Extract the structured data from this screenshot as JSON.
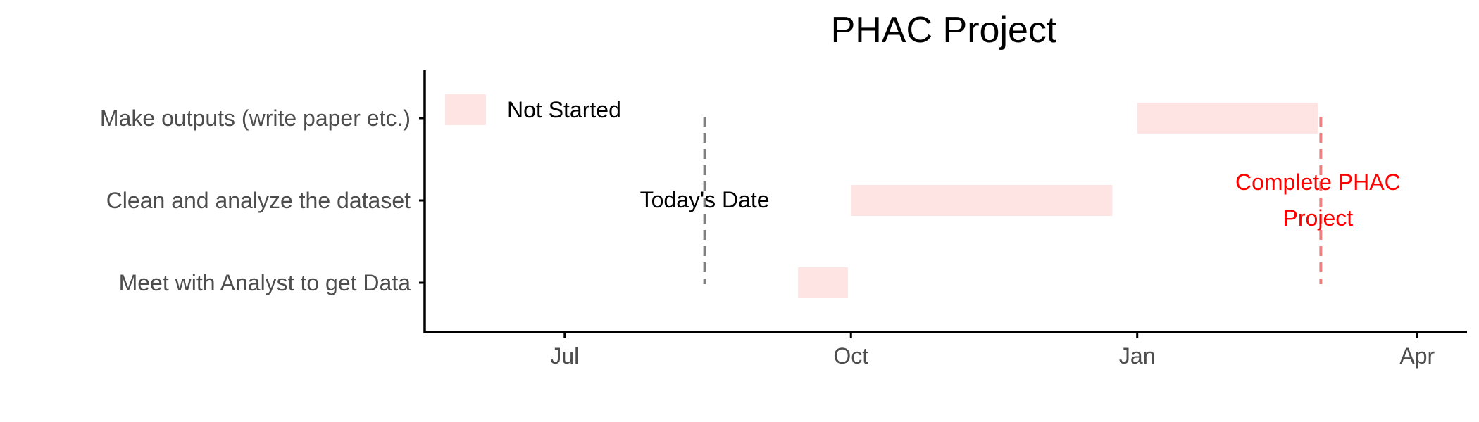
{
  "chart_data": {
    "type": "gantt",
    "title": "PHAC Project",
    "xlabel": "",
    "ylabel": "",
    "x_ticks": [
      "Jul",
      "Oct",
      "Jan",
      "Apr"
    ],
    "x_tick_dates": [
      "2022-07-01",
      "2022-10-01",
      "2023-01-01",
      "2023-04-01"
    ],
    "xlim": [
      "2022-05-17",
      "2023-04-17"
    ],
    "tasks": [
      {
        "name": "Meet with Analyst to get Data",
        "start": "2022-09-14",
        "end": "2022-09-30",
        "status": "Not Started"
      },
      {
        "name": "Clean and analyze the dataset",
        "start": "2022-10-01",
        "end": "2022-12-24",
        "status": "Not Started"
      },
      {
        "name": "Make outputs (write paper etc.)",
        "start": "2023-01-01",
        "end": "2023-02-28",
        "status": "Not Started"
      }
    ],
    "legend": {
      "entries": [
        {
          "label": "Not Started",
          "color": "#ffe4e4"
        }
      ],
      "position": "top-left"
    },
    "annotations": [
      {
        "label": "Today's Date",
        "date": "2022-08-15",
        "color": "#808080",
        "text_color": "#000000"
      },
      {
        "label_lines": [
          "Complete PHAC",
          "Project"
        ],
        "date": "2023-03-01",
        "color": "#f08080",
        "text_color": "#ff0000"
      }
    ],
    "grid": false,
    "colors": {
      "bar": "#ffe4e4",
      "axis": "#000000",
      "tick_label": "#4d4d4d"
    }
  }
}
